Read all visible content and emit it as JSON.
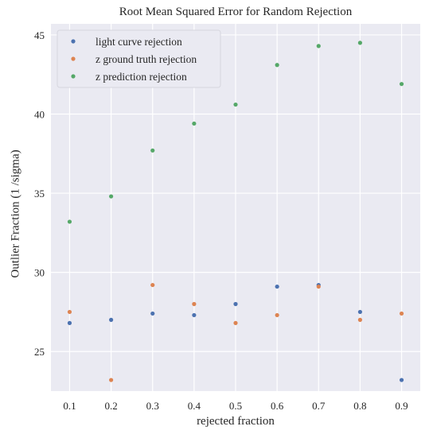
{
  "chart_data": {
    "type": "scatter",
    "title": "Root Mean Squared Error for Random Rejection",
    "xlabel": "rejected fraction",
    "ylabel": "Outlier Fraction (1 /sigma)",
    "xlim": [
      0.055,
      0.945
    ],
    "ylim": [
      22.5,
      45.7
    ],
    "xticks": [
      0.1,
      0.2,
      0.3,
      0.4,
      0.5,
      0.6,
      0.7,
      0.8,
      0.9
    ],
    "yticks": [
      25,
      30,
      35,
      40,
      45
    ],
    "grid": true,
    "legend_position": "top-left",
    "background": "#eaeaf2",
    "series": [
      {
        "name": "light curve rejection",
        "color": "#4c72b0",
        "x": [
          0.1,
          0.2,
          0.3,
          0.4,
          0.5,
          0.6,
          0.7,
          0.8,
          0.9
        ],
        "y": [
          26.8,
          27.0,
          27.4,
          27.3,
          28.0,
          29.1,
          29.2,
          27.5,
          23.2
        ]
      },
      {
        "name": "z ground truth rejection",
        "color": "#dd8452",
        "x": [
          0.1,
          0.2,
          0.3,
          0.4,
          0.5,
          0.6,
          0.7,
          0.8,
          0.9
        ],
        "y": [
          27.5,
          23.2,
          29.2,
          28.0,
          26.8,
          27.3,
          29.1,
          27.0,
          27.4
        ]
      },
      {
        "name": "z prediction rejection",
        "color": "#55a868",
        "x": [
          0.1,
          0.2,
          0.3,
          0.4,
          0.5,
          0.6,
          0.7,
          0.8,
          0.9
        ],
        "y": [
          33.2,
          34.8,
          37.7,
          39.4,
          40.6,
          43.1,
          44.3,
          44.5,
          41.9
        ]
      }
    ]
  }
}
